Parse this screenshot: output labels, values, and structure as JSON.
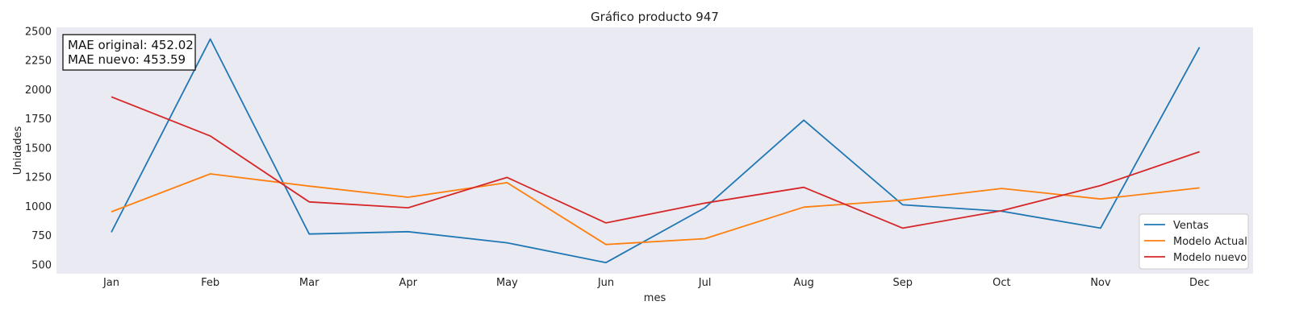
{
  "chart_data": {
    "type": "line",
    "title": "Gráfico producto 947",
    "xlabel": "mes",
    "ylabel": "Unidades",
    "categories": [
      "Jan",
      "Feb",
      "Mar",
      "Apr",
      "May",
      "Jun",
      "Jul",
      "Aug",
      "Sep",
      "Oct",
      "Nov",
      "Dec"
    ],
    "ylim": [
      420,
      2530
    ],
    "yticks": [
      500,
      750,
      1000,
      1250,
      1500,
      1750,
      2000,
      2250,
      2500
    ],
    "grid": false,
    "legend_position": "bottom-right",
    "series": [
      {
        "name": "Ventas",
        "color": "#1f77b4",
        "values": [
          775,
          2430,
          760,
          780,
          685,
          515,
          985,
          1735,
          1010,
          955,
          810,
          2360
        ]
      },
      {
        "name": "Modelo Actual",
        "color": "#ff7f0e",
        "values": [
          950,
          1275,
          1170,
          1075,
          1200,
          670,
          720,
          990,
          1050,
          1150,
          1060,
          1155
        ]
      },
      {
        "name": "Modelo nuevo",
        "color": "#d62728",
        "values": [
          1935,
          1600,
          1035,
          985,
          1245,
          855,
          1025,
          1160,
          810,
          960,
          1175,
          1465
        ]
      }
    ],
    "annotations": [
      "MAE original: 452.02",
      "MAE nuevo: 453.59"
    ]
  },
  "colors": {
    "plot_background": "#eaeaf2"
  }
}
